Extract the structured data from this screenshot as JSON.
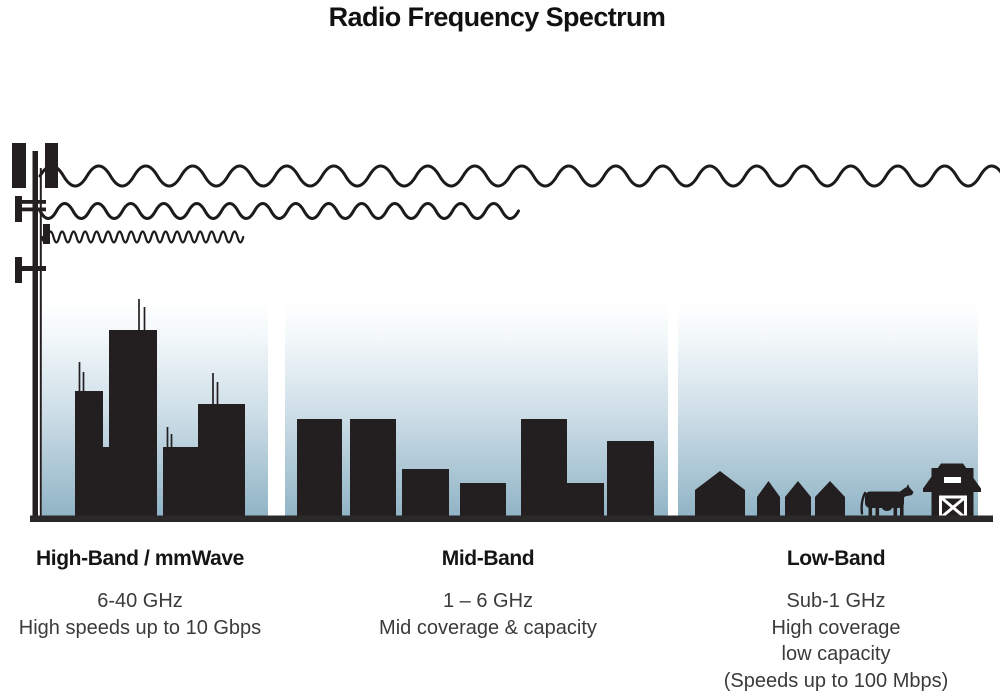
{
  "title": "Radio Frequency Spectrum",
  "colors": {
    "silhouette_ink": "#231f20",
    "sky_gradient_top": "#ffffff",
    "sky_gradient_bottom": "#8fb3c5",
    "ground": "#2b2829",
    "heading_text": "#161414",
    "body_text": "#3c3a3a",
    "barn_door_white": "#ffffff"
  },
  "waves": {
    "long_wave_name": "low-band-long-wavelength",
    "medium_wave_name": "mid-band-medium-wavelength",
    "short_wave_name": "high-band-short-wavelength"
  },
  "sections": [
    {
      "id": "high-band",
      "heading": "High-Band / mmWave",
      "lines": [
        "6-40 GHz",
        "High speeds up to 10 Gbps"
      ]
    },
    {
      "id": "mid-band",
      "heading": "Mid-Band",
      "lines": [
        "1 – 6 GHz",
        "Mid coverage & capacity"
      ]
    },
    {
      "id": "low-band",
      "heading": "Low-Band",
      "lines": [
        "Sub-1 GHz",
        "High coverage",
        "low capacity",
        "(Speeds up to 100 Mbps)"
      ]
    }
  ]
}
